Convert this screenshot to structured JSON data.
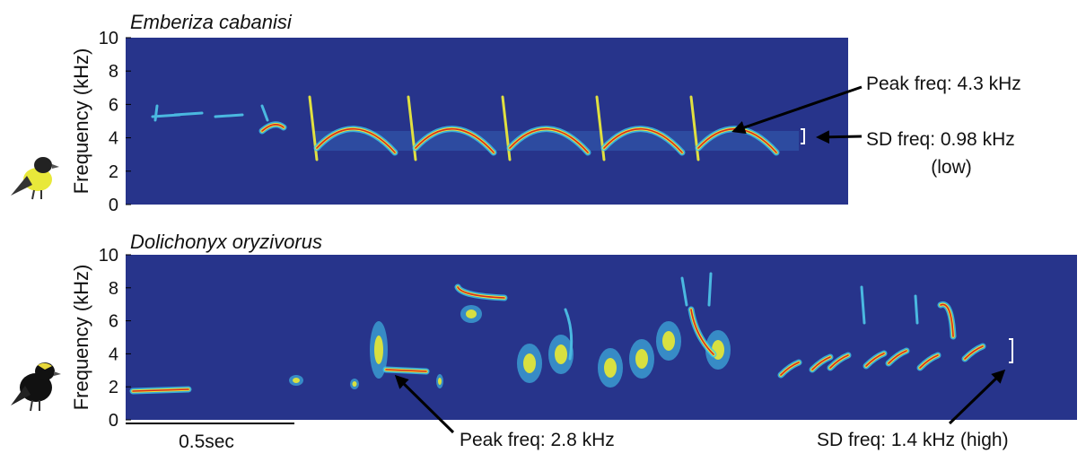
{
  "chart_data": [
    {
      "type": "spectrogram",
      "title": "Emberiza cabanisi",
      "ylabel": "Frequency (kHz)",
      "ylim": [
        0,
        10
      ],
      "yticks": [
        0,
        2,
        4,
        6,
        8,
        10
      ],
      "annotations": [
        "Peak freq: 4.3 kHz",
        "SD freq: 0.98 kHz",
        "(low)"
      ]
    },
    {
      "type": "spectrogram",
      "title": "Dolichonyx oryzivorus",
      "ylabel": "Frequency (kHz)",
      "ylim": [
        0,
        10
      ],
      "yticks": [
        0,
        2,
        4,
        6,
        8,
        10
      ],
      "annotations": [
        "Peak freq: 2.8 kHz",
        "SD freq: 1.4 kHz (high)"
      ],
      "scale_bar": "0.5sec"
    }
  ]
}
